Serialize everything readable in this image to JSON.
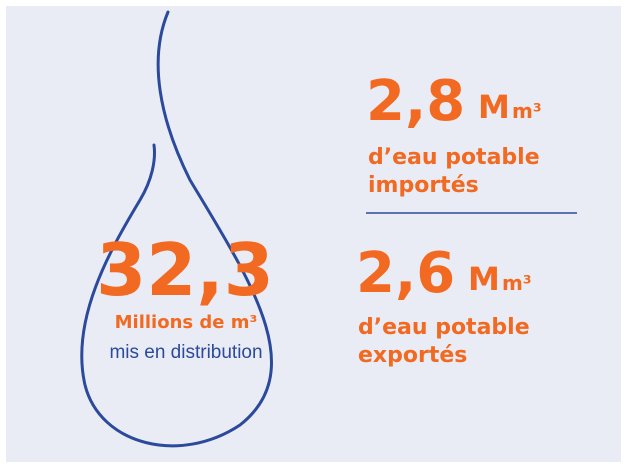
{
  "main": {
    "value": "32,3",
    "unit": "Millions de m³",
    "caption": "mis en distribution"
  },
  "imports": {
    "value": "2,8",
    "unit": "M",
    "unit_sub": "m³",
    "line1": "d’eau potable",
    "line2": "importés"
  },
  "exports": {
    "value": "2,6",
    "unit": "M",
    "unit_sub": "m³",
    "line1": "d’eau potable",
    "line2": "exportés"
  }
}
